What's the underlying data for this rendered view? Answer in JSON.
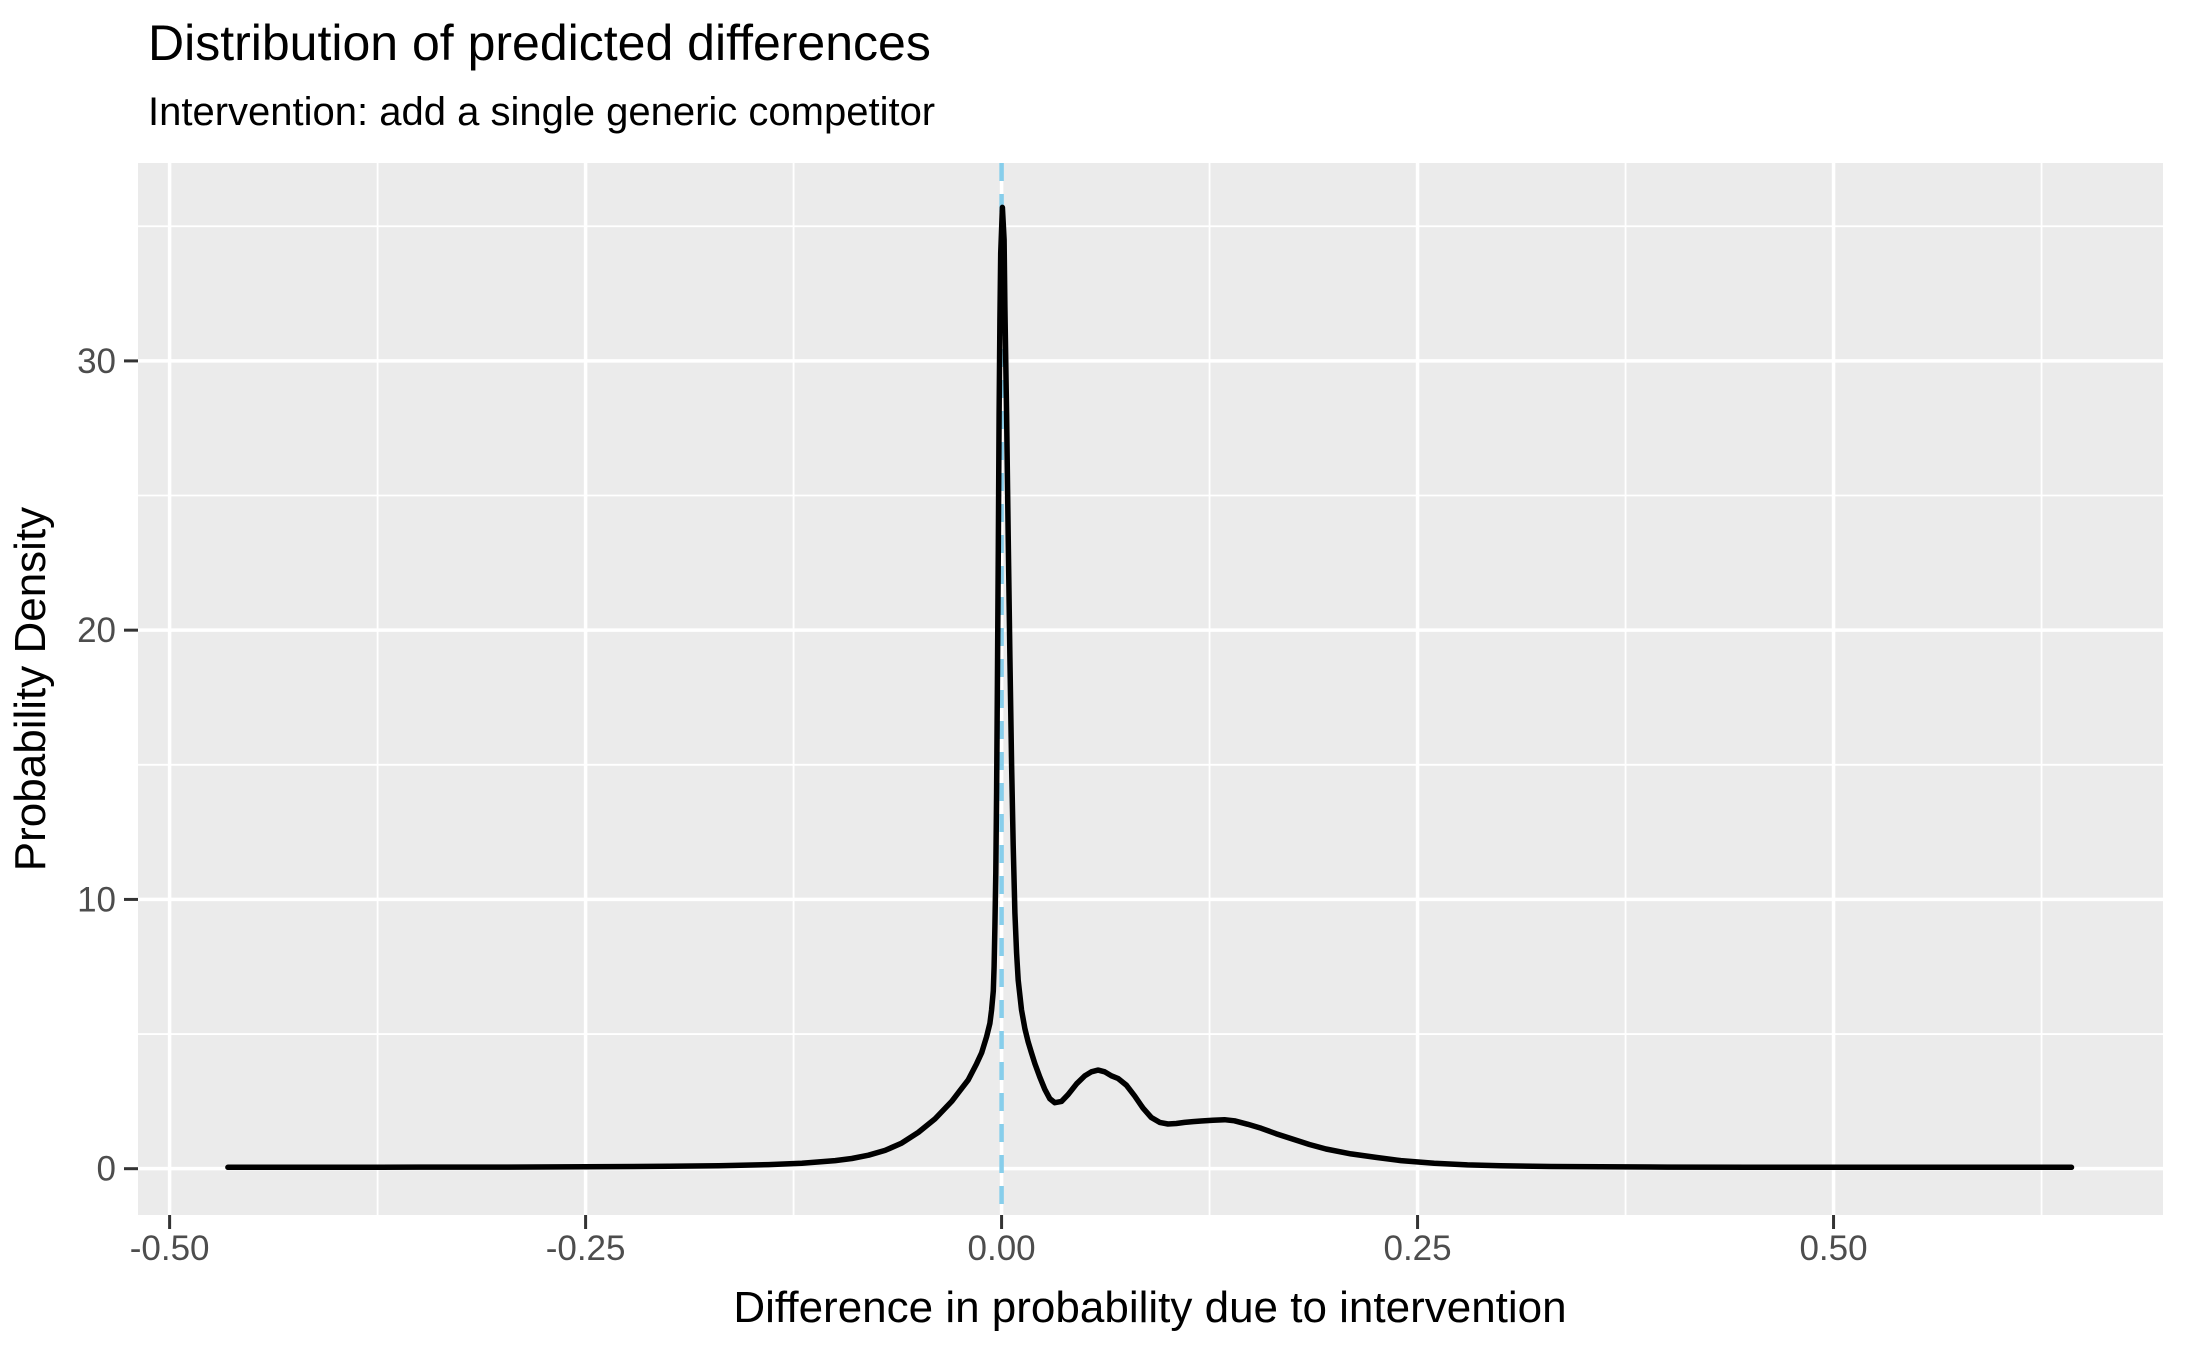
{
  "chart_data": {
    "type": "line",
    "subtype": "density",
    "title": "Distribution of predicted differences",
    "subtitle": "Intervention: add a single generic competitor",
    "xlabel": "Difference in probability due to intervention",
    "ylabel": "Probability Density",
    "xlim": [
      -0.519,
      0.698
    ],
    "ylim": [
      -1.72,
      37.35
    ],
    "grid": "on",
    "legend": "none",
    "panel_background": "#EBEBEB",
    "gridline_color": "#FFFFFF",
    "tick_mark_color": "#333333",
    "tick_label_color": "#4d4d4d",
    "x_major_ticks": [
      {
        "value": -0.5,
        "label": "-0.50"
      },
      {
        "value": -0.25,
        "label": "-0.25"
      },
      {
        "value": 0.0,
        "label": "0.00"
      },
      {
        "value": 0.25,
        "label": "0.25"
      },
      {
        "value": 0.5,
        "label": "0.50"
      }
    ],
    "x_minor_ticks": [
      -0.375,
      -0.125,
      0.125,
      0.375,
      0.625
    ],
    "y_major_ticks": [
      {
        "value": 0,
        "label": "0"
      },
      {
        "value": 10,
        "label": "10"
      },
      {
        "value": 20,
        "label": "20"
      },
      {
        "value": 30,
        "label": "30"
      }
    ],
    "y_minor_ticks": [
      5,
      15,
      25,
      35
    ],
    "reference_line": {
      "x": 0,
      "style": "dashed",
      "color": "#87CEEB",
      "dash": [
        18,
        13
      ],
      "width": 4.5
    },
    "series": [
      {
        "name": "predicted-difference-density",
        "color": "#000000",
        "stroke_width": 5.5,
        "points": [
          [
            -0.465,
            0.05
          ],
          [
            -0.4,
            0.05
          ],
          [
            -0.35,
            0.06
          ],
          [
            -0.3,
            0.06
          ],
          [
            -0.25,
            0.07
          ],
          [
            -0.2,
            0.09
          ],
          [
            -0.17,
            0.11
          ],
          [
            -0.14,
            0.15
          ],
          [
            -0.12,
            0.2
          ],
          [
            -0.1,
            0.3
          ],
          [
            -0.09,
            0.38
          ],
          [
            -0.08,
            0.5
          ],
          [
            -0.07,
            0.68
          ],
          [
            -0.06,
            0.95
          ],
          [
            -0.05,
            1.35
          ],
          [
            -0.04,
            1.85
          ],
          [
            -0.03,
            2.5
          ],
          [
            -0.025,
            2.9
          ],
          [
            -0.02,
            3.3
          ],
          [
            -0.015,
            3.9
          ],
          [
            -0.012,
            4.3
          ],
          [
            -0.009,
            4.9
          ],
          [
            -0.007,
            5.4
          ],
          [
            -0.006,
            5.9
          ],
          [
            -0.005,
            6.6
          ],
          [
            -0.0045,
            7.5
          ],
          [
            -0.004,
            9.0
          ],
          [
            -0.0035,
            11.0
          ],
          [
            -0.003,
            14.0
          ],
          [
            -0.0025,
            18.0
          ],
          [
            -0.002,
            23.0
          ],
          [
            -0.0015,
            28.0
          ],
          [
            -0.001,
            31.5
          ],
          [
            -0.0005,
            34.0
          ],
          [
            0.0005,
            35.7
          ],
          [
            0.0015,
            34.5
          ],
          [
            0.002,
            32.0
          ],
          [
            0.003,
            28.0
          ],
          [
            0.004,
            23.5
          ],
          [
            0.005,
            19.0
          ],
          [
            0.006,
            15.0
          ],
          [
            0.007,
            12.0
          ],
          [
            0.008,
            9.5
          ],
          [
            0.009,
            8.0
          ],
          [
            0.01,
            7.0
          ],
          [
            0.012,
            5.9
          ],
          [
            0.014,
            5.2
          ],
          [
            0.016,
            4.7
          ],
          [
            0.018,
            4.3
          ],
          [
            0.02,
            3.9
          ],
          [
            0.023,
            3.4
          ],
          [
            0.026,
            2.95
          ],
          [
            0.029,
            2.6
          ],
          [
            0.032,
            2.45
          ],
          [
            0.036,
            2.5
          ],
          [
            0.04,
            2.75
          ],
          [
            0.045,
            3.15
          ],
          [
            0.05,
            3.45
          ],
          [
            0.054,
            3.6
          ],
          [
            0.058,
            3.66
          ],
          [
            0.062,
            3.6
          ],
          [
            0.066,
            3.45
          ],
          [
            0.07,
            3.35
          ],
          [
            0.075,
            3.1
          ],
          [
            0.08,
            2.7
          ],
          [
            0.085,
            2.25
          ],
          [
            0.09,
            1.9
          ],
          [
            0.095,
            1.72
          ],
          [
            0.1,
            1.66
          ],
          [
            0.105,
            1.68
          ],
          [
            0.11,
            1.72
          ],
          [
            0.115,
            1.75
          ],
          [
            0.12,
            1.77
          ],
          [
            0.127,
            1.8
          ],
          [
            0.134,
            1.82
          ],
          [
            0.14,
            1.78
          ],
          [
            0.148,
            1.65
          ],
          [
            0.156,
            1.5
          ],
          [
            0.165,
            1.3
          ],
          [
            0.175,
            1.1
          ],
          [
            0.185,
            0.9
          ],
          [
            0.195,
            0.73
          ],
          [
            0.21,
            0.55
          ],
          [
            0.225,
            0.42
          ],
          [
            0.24,
            0.3
          ],
          [
            0.26,
            0.2
          ],
          [
            0.28,
            0.14
          ],
          [
            0.3,
            0.11
          ],
          [
            0.33,
            0.08
          ],
          [
            0.36,
            0.07
          ],
          [
            0.4,
            0.06
          ],
          [
            0.45,
            0.05
          ],
          [
            0.5,
            0.05
          ],
          [
            0.55,
            0.05
          ],
          [
            0.6,
            0.05
          ],
          [
            0.643,
            0.05
          ]
        ]
      }
    ]
  }
}
